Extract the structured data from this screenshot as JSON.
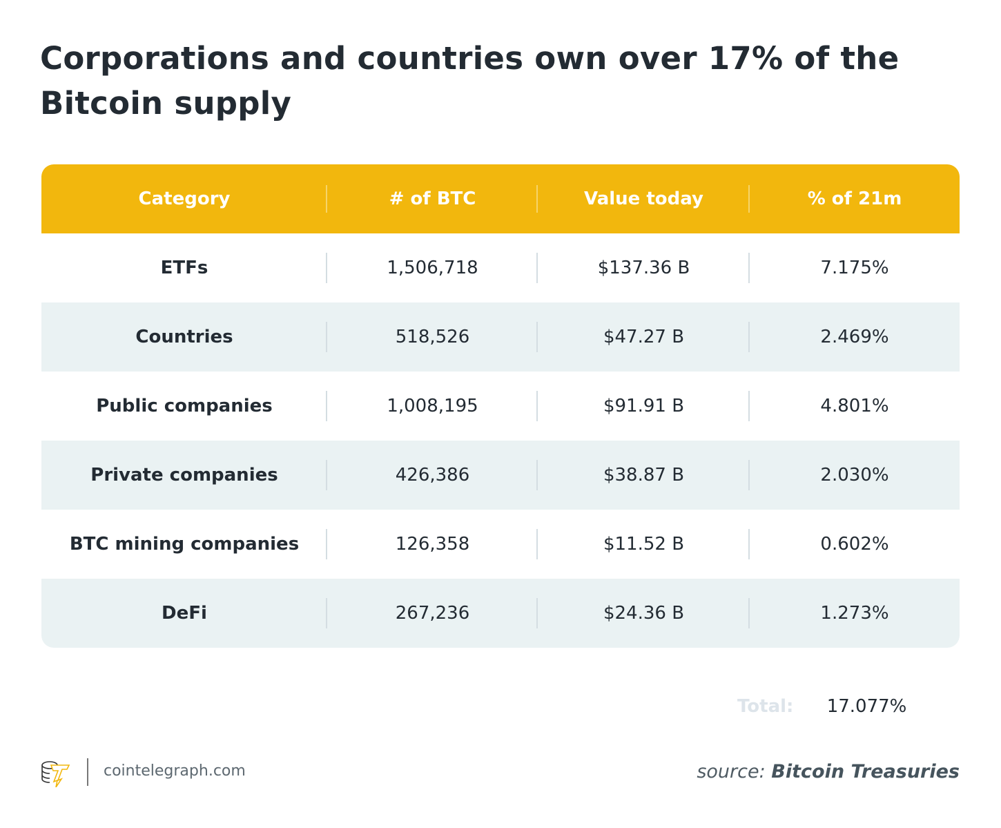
{
  "title": "Corporations and countries own over 17% of the Bitcoin supply",
  "table": {
    "headers": [
      "Category",
      "# of BTC",
      "Value today",
      "% of 21m"
    ],
    "rows": [
      [
        "ETFs",
        "1,506,718",
        "$137.36 B",
        "7.175%"
      ],
      [
        "Countries",
        "518,526",
        "$47.27 B",
        "2.469%"
      ],
      [
        "Public companies",
        "1,008,195",
        "$91.91 B",
        "4.801%"
      ],
      [
        "Private companies",
        "426,386",
        "$38.87 B",
        "2.030%"
      ],
      [
        "BTC mining companies",
        "126,358",
        "$11.52 B",
        "0.602%"
      ],
      [
        "DeFi",
        "267,236",
        "$24.36 B",
        "1.273%"
      ]
    ]
  },
  "total": {
    "label": "Total:",
    "value": "17.077%"
  },
  "footer": {
    "site": "cointelegraph.com",
    "source_label": "source:",
    "source_name": "Bitcoin Treasuries",
    "logo_icon": "cointelegraph-logo-icon"
  },
  "colors": {
    "header": "#f2b70d",
    "alt_row": "#eaf2f3",
    "text": "#232b33"
  }
}
